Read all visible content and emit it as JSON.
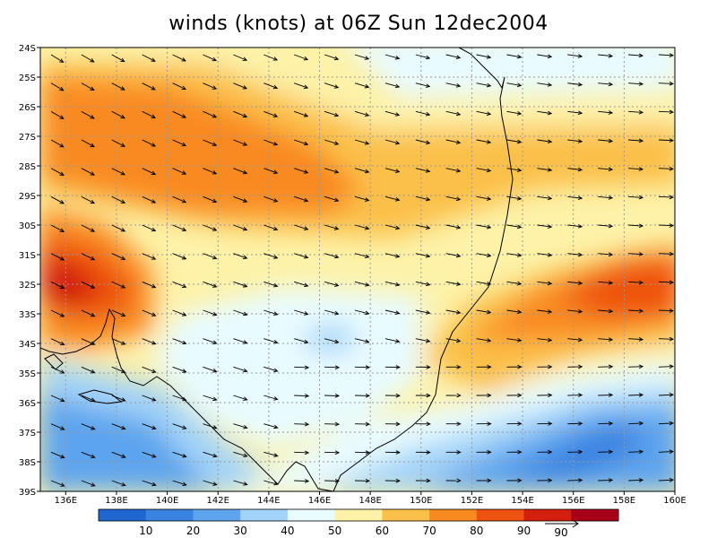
{
  "title": "winds (knots) at 06Z Sun 12dec2004",
  "lat_labels": [
    "24S",
    "25S",
    "26S",
    "27S",
    "28S",
    "29S",
    "30S",
    "31S",
    "32S",
    "33S",
    "34S",
    "35S",
    "36S",
    "37S",
    "38S",
    "39S"
  ],
  "lon_labels": [
    "136E",
    "138E",
    "140E",
    "142E",
    "144E",
    "146E",
    "148E",
    "150E",
    "152E",
    "154E",
    "156E",
    "158E",
    "160E"
  ],
  "colorbar": {
    "labels": [
      "10",
      "20",
      "30",
      "40",
      "50",
      "60",
      "70",
      "80",
      "90"
    ],
    "colors": [
      "#1f66d0",
      "#3a82e0",
      "#5da4ef",
      "#a3d3f8",
      "#e8fbff",
      "#fdf2a8",
      "#fbc04a",
      "#f98a22",
      "#ee5211",
      "#d21f0e",
      "#a8001a"
    ]
  },
  "legend_arrow_label": "90",
  "map_colors": {
    "coast": "#000000",
    "grid": "#999999",
    "arrow": "#000000"
  }
}
